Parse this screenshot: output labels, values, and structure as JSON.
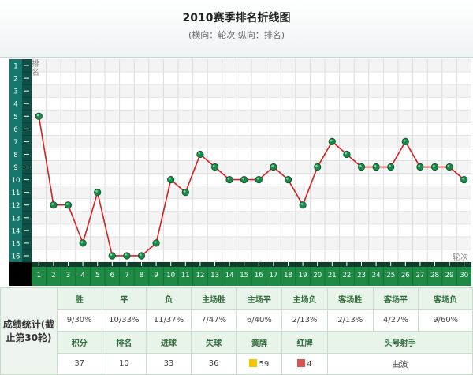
{
  "header": {
    "title": "2010赛季排名折线图",
    "subtitle": "(横向：轮次  纵向：排名)"
  },
  "chart_data": {
    "type": "line",
    "title": "2010赛季排名折线图",
    "xlabel": "轮次",
    "ylabel": "排名",
    "x": [
      1,
      2,
      3,
      4,
      5,
      6,
      7,
      8,
      9,
      10,
      11,
      12,
      13,
      14,
      15,
      16,
      17,
      18,
      19,
      20,
      21,
      22,
      23,
      24,
      25,
      26,
      27,
      28,
      29,
      30
    ],
    "y_ticks": [
      1,
      2,
      3,
      4,
      5,
      6,
      7,
      8,
      9,
      10,
      11,
      12,
      13,
      14,
      15,
      16
    ],
    "ylim": [
      1,
      16
    ],
    "y_inverted": true,
    "grid": true,
    "series": [
      {
        "values": [
          5,
          12,
          12,
          15,
          11,
          16,
          16,
          16,
          15,
          10,
          11,
          8,
          9,
          10,
          10,
          10,
          9,
          10,
          12,
          9,
          7,
          8,
          9,
          9,
          9,
          7,
          9,
          9,
          9,
          10
        ]
      }
    ],
    "line_color": "#d42020",
    "marker_color": "#1a8a4a"
  },
  "stats": {
    "caption": "成绩统计(截止第30轮)",
    "row1_headers": [
      "胜",
      "平",
      "负",
      "主场胜",
      "主场平",
      "主场负",
      "客场胜",
      "客场平",
      "客场负"
    ],
    "row1_values": [
      "9/30%",
      "10/33%",
      "11/37%",
      "7/47%",
      "6/40%",
      "2/13%",
      "2/13%",
      "4/27%",
      "9/60%"
    ],
    "row2_headers": [
      "积分",
      "排名",
      "进球",
      "失球",
      "黄牌",
      "红牌",
      "头号射手"
    ],
    "row2_values": [
      "37",
      "10",
      "33",
      "36",
      "59",
      "4",
      "曲波"
    ],
    "yellow_color": "#f5c400",
    "red_color": "#d9534f"
  }
}
